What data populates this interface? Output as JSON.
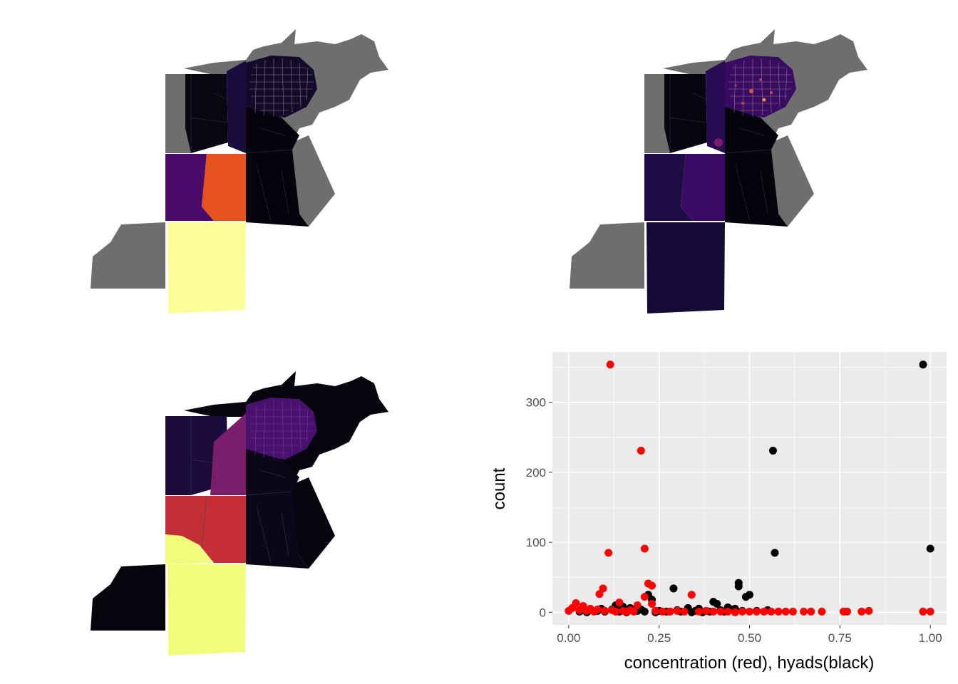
{
  "panels": {
    "map_top_left": {
      "fills": {
        "outer": "#6e6e6e",
        "upper_west": "#0a0712",
        "upper_mid": "#1b0c3e",
        "city_base": "#140b2b",
        "mid_west": "#4b0b6b",
        "mid_east": "#e5521d",
        "east_lower": "#05030c",
        "south": "#fcfe98"
      }
    },
    "map_top_right": {
      "fills": {
        "outer": "#6e6e6e",
        "upper_west": "#07050f",
        "upper_mid": "#2a0c55",
        "city_base": "#3a0b62",
        "mid_west": "#1e0c45",
        "mid_east": "#3b0966",
        "east_lower": "#05030c",
        "south": "#150a35"
      }
    },
    "map_bottom_left": {
      "fills": {
        "outer": "#06040d",
        "upper_west": "#1a0b3b",
        "upper_mid": "#7a1e6c",
        "city_base": "#4a1070",
        "mid_west": "#c22f37",
        "mid_east": "#c62f37",
        "east_lower": "#0b0719",
        "south": "#f1fc7c"
      }
    }
  },
  "chart_data": {
    "type": "scatter",
    "xlabel": "concentration (red), hyads(black)",
    "ylabel": "count",
    "xlim": [
      -0.045,
      1.045
    ],
    "ylim": [
      -18,
      372
    ],
    "xticks": [
      0,
      0.25,
      0.5,
      0.75,
      1
    ],
    "xtick_labels": [
      "0.00",
      "0.25",
      "0.50",
      "0.75",
      "1.00"
    ],
    "yticks": [
      0,
      100,
      200,
      300
    ],
    "ytick_labels": [
      "0",
      "100",
      "200",
      "300"
    ],
    "grid": true,
    "panel_background": "#ebebeb",
    "series": [
      {
        "color": "#000000",
        "x": [
          0.98,
          0.565,
          1.0,
          0.57,
          0.47,
          0.47,
          0.29,
          0.22,
          0.23,
          0.5,
          0.49,
          0.4,
          0.41,
          0.13,
          0.15,
          0.17,
          0.33,
          0.36,
          0.44,
          0.12,
          0.06,
          0.09,
          0.18,
          0.2,
          0.25,
          0.3,
          0.38,
          0.42,
          0.45,
          0.46,
          0.52,
          0.55,
          0.03,
          0.08,
          0.14,
          0.19,
          0.27,
          0.31,
          0.35,
          0.39,
          0.43,
          0.48,
          0.05,
          0.1,
          0.16,
          0.21,
          0.24,
          0.28,
          0.34,
          0.37
        ],
        "y": [
          354,
          231,
          91,
          85,
          42,
          37,
          34,
          25,
          18,
          25,
          22,
          15,
          12,
          10,
          8,
          6,
          6,
          5,
          7,
          4,
          3,
          5,
          3,
          4,
          2,
          3,
          2,
          3,
          4,
          5,
          2,
          3,
          1,
          2,
          1,
          2,
          1,
          1,
          2,
          1,
          1,
          2,
          0,
          1,
          0,
          1,
          0,
          1,
          0,
          0
        ]
      },
      {
        "color": "#ff0000",
        "x": [
          0.115,
          0.2,
          0.21,
          0.11,
          0.095,
          0.22,
          0.23,
          0.085,
          0.21,
          0.34,
          0.23,
          0.19,
          0.14,
          0.02,
          0.04,
          0.06,
          0.0,
          0.01,
          0.03,
          0.05,
          0.07,
          0.08,
          0.1,
          0.12,
          0.13,
          0.15,
          0.16,
          0.17,
          0.18,
          0.24,
          0.26,
          0.28,
          0.3,
          0.32,
          0.36,
          0.38,
          0.4,
          0.42,
          0.44,
          0.46,
          0.48,
          0.5,
          0.52,
          0.54,
          0.56,
          0.58,
          0.6,
          0.62,
          0.65,
          0.67,
          0.7,
          0.76,
          0.77,
          0.81,
          0.83,
          0.98,
          1.0
        ],
        "y": [
          354,
          231,
          91,
          85,
          34,
          41,
          38,
          26,
          22,
          25,
          12,
          10,
          14,
          13,
          9,
          5,
          2,
          6,
          3,
          2,
          1,
          4,
          2,
          3,
          1,
          2,
          1,
          3,
          1,
          2,
          1,
          1,
          2,
          1,
          1,
          2,
          1,
          1,
          1,
          0,
          1,
          1,
          1,
          1,
          1,
          1,
          1,
          1,
          1,
          1,
          1,
          1,
          1,
          1,
          2,
          1,
          1
        ]
      }
    ]
  }
}
